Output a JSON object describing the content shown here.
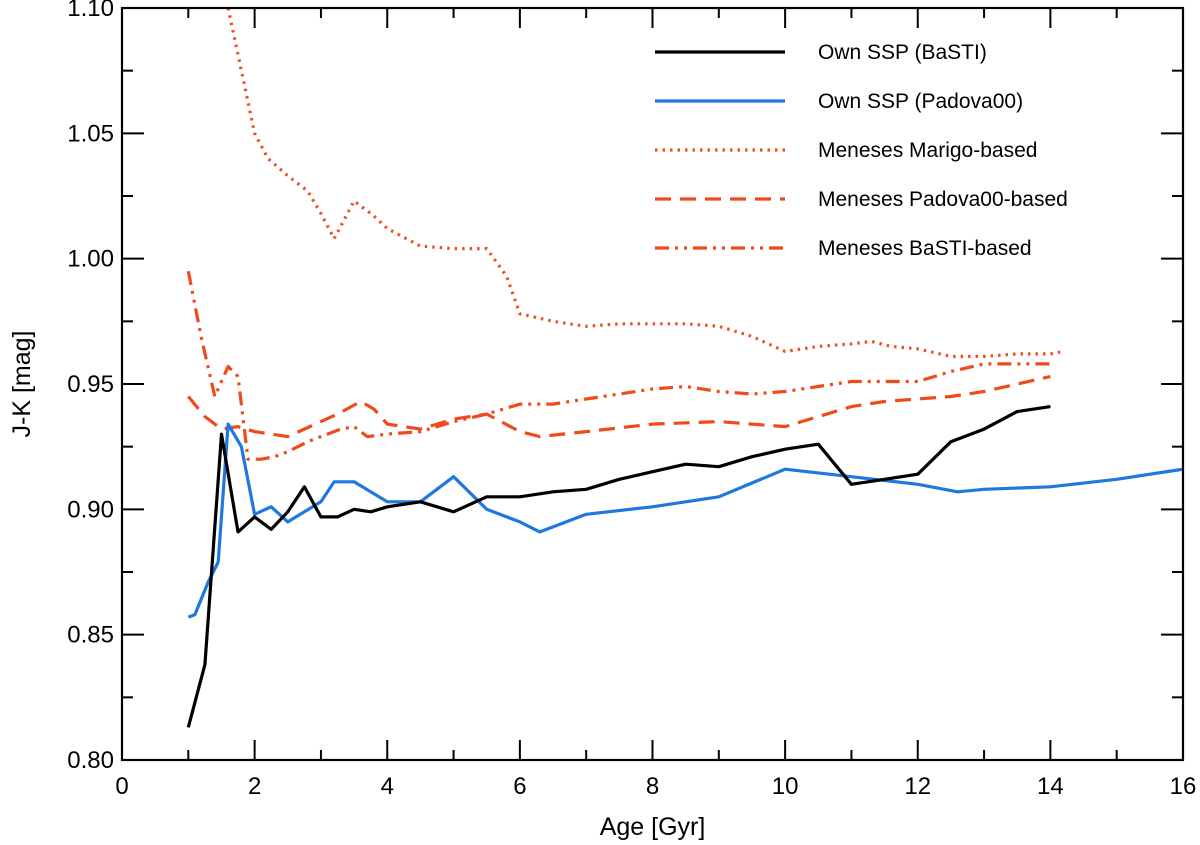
{
  "chart_data": {
    "type": "line",
    "title": "",
    "xlabel": "Age [Gyr]",
    "ylabel": "J-K [mag]",
    "xlim": [
      0,
      16
    ],
    "ylim": [
      0.8,
      1.1
    ],
    "grid": false,
    "legend_position": "top-right",
    "xticks": [
      0,
      2,
      4,
      6,
      8,
      10,
      12,
      14,
      16
    ],
    "xtick_labels": [
      "0",
      "2",
      "4",
      "6",
      "8",
      "10",
      "12",
      "14",
      "16"
    ],
    "yticks": [
      0.8,
      0.85,
      0.9,
      0.95,
      1.0,
      1.05,
      1.1
    ],
    "ytick_labels": [
      "0.80",
      "0.85",
      "0.90",
      "0.95",
      "1.00",
      "1.05",
      "1.10"
    ],
    "series": [
      {
        "name": "Own SSP (BaSTI)",
        "color": "#000000",
        "style": "solid",
        "x": [
          1.0,
          1.25,
          1.5,
          1.75,
          2.0,
          2.25,
          2.5,
          2.75,
          3.0,
          3.25,
          3.5,
          3.75,
          4.0,
          4.5,
          5.0,
          5.5,
          6.0,
          6.5,
          7.0,
          7.5,
          8.0,
          8.5,
          9.0,
          9.5,
          10.0,
          10.5,
          11.0,
          11.5,
          12.0,
          12.5,
          13.0,
          13.5,
          14.0
        ],
        "y": [
          0.813,
          0.838,
          0.93,
          0.891,
          0.897,
          0.892,
          0.899,
          0.909,
          0.897,
          0.897,
          0.9,
          0.899,
          0.901,
          0.903,
          0.899,
          0.905,
          0.905,
          0.907,
          0.908,
          0.912,
          0.915,
          0.918,
          0.917,
          0.921,
          0.924,
          0.926,
          0.91,
          0.912,
          0.914,
          0.927,
          0.932,
          0.939,
          0.941
        ]
      },
      {
        "name": "Own SSP (Padova00)",
        "color": "#1f77e0",
        "style": "solid",
        "x": [
          1.0,
          1.1,
          1.3,
          1.45,
          1.6,
          1.8,
          2.0,
          2.25,
          2.5,
          2.75,
          3.0,
          3.2,
          3.5,
          4.0,
          4.5,
          5.0,
          5.5,
          6.0,
          6.3,
          7.0,
          8.0,
          9.0,
          10.0,
          11.0,
          12.0,
          12.6,
          13.0,
          14.0,
          15.0,
          16.0
        ],
        "y": [
          0.857,
          0.858,
          0.871,
          0.879,
          0.934,
          0.925,
          0.898,
          0.901,
          0.895,
          0.899,
          0.903,
          0.911,
          0.911,
          0.903,
          0.903,
          0.913,
          0.9,
          0.895,
          0.891,
          0.898,
          0.901,
          0.905,
          0.916,
          0.913,
          0.91,
          0.907,
          0.908,
          0.909,
          0.912,
          0.916
        ]
      },
      {
        "name": "Meneses Marigo-based",
        "color": "#f05020",
        "style": "dotted",
        "x": [
          1.6,
          1.8,
          2.0,
          2.2,
          2.5,
          2.8,
          3.0,
          3.2,
          3.5,
          3.8,
          4.0,
          4.5,
          5.0,
          5.5,
          5.8,
          6.0,
          6.5,
          7.0,
          7.5,
          8.0,
          8.5,
          9.0,
          9.5,
          10.0,
          10.5,
          11.0,
          11.3,
          11.6,
          12.0,
          12.5,
          13.0,
          13.5,
          14.0,
          14.2
        ],
        "y": [
          1.1,
          1.075,
          1.05,
          1.04,
          1.033,
          1.027,
          1.018,
          1.008,
          1.023,
          1.017,
          1.012,
          1.005,
          1.004,
          1.004,
          0.993,
          0.978,
          0.975,
          0.973,
          0.974,
          0.974,
          0.974,
          0.973,
          0.969,
          0.963,
          0.965,
          0.966,
          0.967,
          0.965,
          0.964,
          0.961,
          0.961,
          0.962,
          0.962,
          0.963
        ]
      },
      {
        "name": "Meneses Padova00-based",
        "color": "#f04a1a",
        "style": "dashed",
        "x": [
          1.0,
          1.25,
          1.5,
          1.75,
          2.0,
          2.5,
          3.0,
          3.25,
          3.6,
          3.8,
          4.0,
          4.5,
          5.0,
          5.5,
          6.0,
          6.3,
          7.0,
          8.0,
          9.0,
          10.0,
          10.5,
          11.0,
          11.5,
          12.0,
          12.5,
          13.0,
          13.5,
          14.0
        ],
        "y": [
          0.945,
          0.937,
          0.932,
          0.933,
          0.931,
          0.929,
          0.935,
          0.938,
          0.943,
          0.94,
          0.934,
          0.932,
          0.936,
          0.938,
          0.931,
          0.929,
          0.931,
          0.934,
          0.935,
          0.933,
          0.937,
          0.941,
          0.943,
          0.944,
          0.945,
          0.947,
          0.95,
          0.953
        ]
      },
      {
        "name": "Meneses BaSTI-based",
        "color": "#f04a1a",
        "style": "dashdotdot",
        "x": [
          1.0,
          1.2,
          1.4,
          1.6,
          1.75,
          1.9,
          2.1,
          2.3,
          2.5,
          2.8,
          3.0,
          3.3,
          3.5,
          3.7,
          4.0,
          4.5,
          5.0,
          5.5,
          6.0,
          6.5,
          7.0,
          7.5,
          8.0,
          8.5,
          9.0,
          9.5,
          10.0,
          10.5,
          11.0,
          11.5,
          12.0,
          12.5,
          13.0,
          13.5,
          14.0
        ],
        "y": [
          0.995,
          0.968,
          0.945,
          0.957,
          0.953,
          0.92,
          0.92,
          0.921,
          0.923,
          0.927,
          0.929,
          0.932,
          0.933,
          0.929,
          0.93,
          0.931,
          0.935,
          0.938,
          0.942,
          0.942,
          0.944,
          0.946,
          0.948,
          0.949,
          0.947,
          0.946,
          0.947,
          0.949,
          0.951,
          0.951,
          0.951,
          0.955,
          0.958,
          0.958,
          0.958
        ]
      }
    ]
  }
}
